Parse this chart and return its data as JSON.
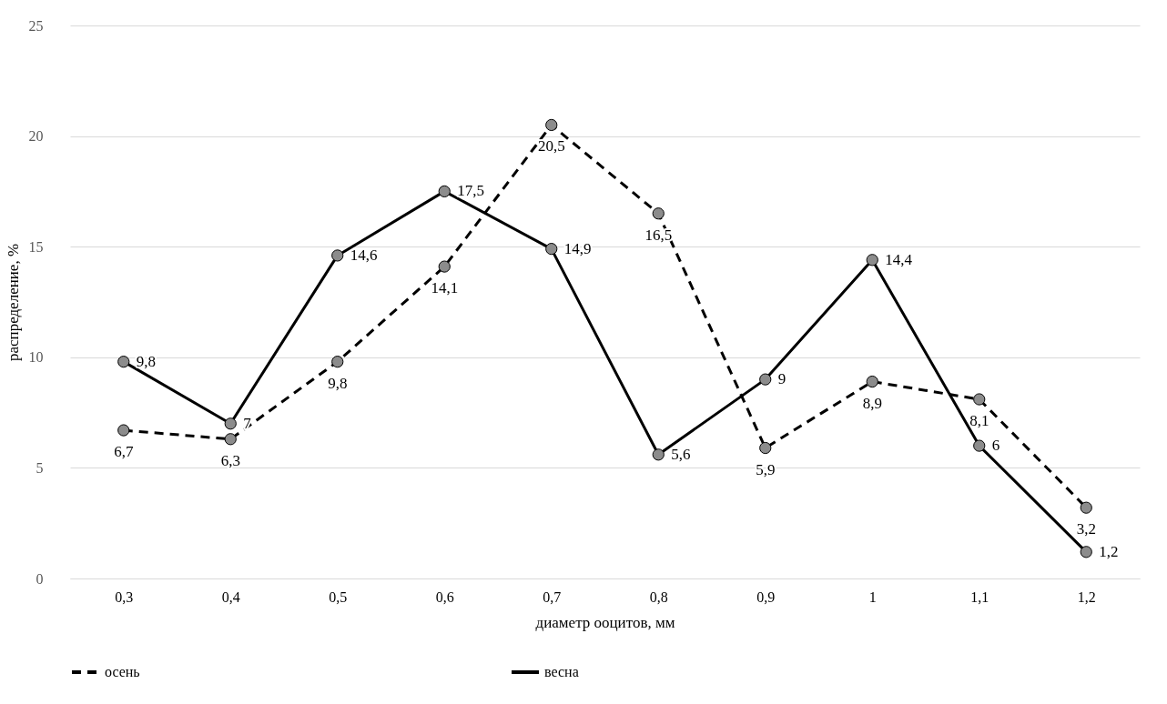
{
  "chart_data": {
    "type": "line",
    "xlabel": "диаметр ооцитов, мм",
    "ylabel": "распределение, %",
    "categories": [
      "0,3",
      "0,4",
      "0,5",
      "0,6",
      "0,7",
      "0,8",
      "0,9",
      "1",
      "1,1",
      "1,2"
    ],
    "series": [
      {
        "name": "осень",
        "color": "#000000",
        "line_style": "dashed",
        "values": [
          6.7,
          6.3,
          9.8,
          14.1,
          20.5,
          16.5,
          5.9,
          8.9,
          8.1,
          3.2
        ],
        "value_labels": [
          "6,7",
          "6,3",
          "9,8",
          "14,1",
          "20,5",
          "16,5",
          "5,9",
          "8,9",
          "8,1",
          "3,2"
        ]
      },
      {
        "name": "весна",
        "color": "#000000",
        "line_style": "solid",
        "values": [
          9.8,
          7,
          14.6,
          17.5,
          14.9,
          5.6,
          9,
          14.4,
          6,
          1.2
        ],
        "value_labels": [
          "9,8",
          "7",
          "14,6",
          "17,5",
          "14,9",
          "5,6",
          "9",
          "14,4",
          "6",
          "1,2"
        ]
      }
    ],
    "ylim": [
      0,
      25
    ],
    "yticks": [
      0,
      5,
      10,
      15,
      20,
      25
    ],
    "grid": "y",
    "legend": "bottom",
    "marker": "circle"
  }
}
